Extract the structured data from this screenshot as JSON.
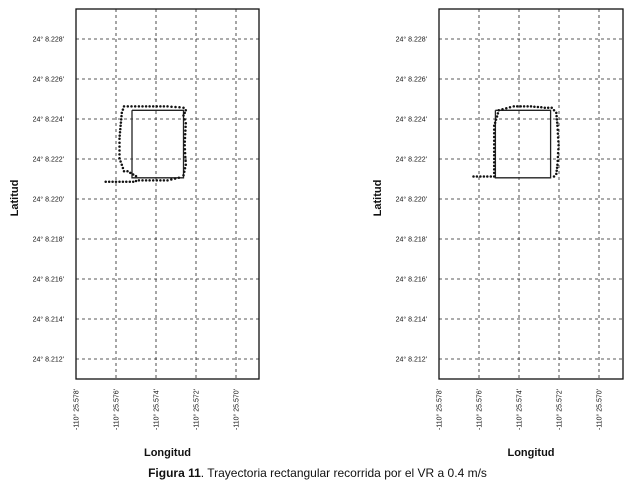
{
  "caption": {
    "label": "Figura 11",
    "text": ". Trayectoria rectangular recorrida por el VR a 0.4 m/s"
  },
  "chart_data": [
    {
      "type": "scatter",
      "xlabel": "Longitud",
      "ylabel": "Latitud",
      "x_ticks": [
        "-110° 25.578'",
        "-110° 25.576'",
        "-110° 25.574'",
        "-110° 25.572'",
        "-110° 25.570'"
      ],
      "y_ticks": [
        "24° 8.228'",
        "24° 8.226'",
        "24° 8.224'",
        "24° 8.222'",
        "24° 8.220'",
        "24° 8.218'",
        "24° 8.216'",
        "24° 8.214'",
        "24° 8.212'"
      ],
      "xlim": [
        -110.42631,
        -110.42615
      ],
      "ylim": [
        24.136865,
        24.13715
      ],
      "grid": true,
      "series": [
        {
          "style": "line",
          "x": [
            -110.426261,
            -110.426261,
            -110.426216,
            -110.426216,
            -110.426261
          ],
          "y": [
            24.137072,
            24.13702,
            24.13702,
            24.137072,
            24.137072
          ]
        },
        {
          "style": "dotted",
          "x": [
            -110.426284,
            -110.42626,
            -110.426255,
            -110.42623,
            -110.42622,
            -110.426216,
            -110.426214,
            -110.426215,
            -110.426214,
            -110.426216,
            -110.426214,
            -110.426216,
            -110.42623,
            -110.426255,
            -110.426268,
            -110.42627,
            -110.426271,
            -110.426272,
            -110.426272,
            -110.426268,
            -110.426265,
            -110.426255
          ],
          "y": [
            24.137017,
            24.137017,
            24.137018,
            24.137018,
            24.13702,
            24.137022,
            24.13703,
            24.137045,
            24.137062,
            24.137068,
            24.137072,
            24.137074,
            24.137075,
            24.137075,
            24.137075,
            24.13707,
            24.13706,
            24.13705,
            24.137035,
            24.137025,
            24.137025,
            24.13702
          ]
        }
      ]
    },
    {
      "type": "scatter",
      "xlabel": "Longitud",
      "ylabel": "Latitud",
      "x_ticks": [
        "-110° 25.578'",
        "-110° 25.576'",
        "-110° 25.574'",
        "-110° 25.572'",
        "-110° 25.570'"
      ],
      "y_ticks": [
        "24° 8.228'",
        "24° 8.226'",
        "24° 8.224'",
        "24° 8.222'",
        "24° 8.220'",
        "24° 8.218'",
        "24° 8.216'",
        "24° 8.214'",
        "24° 8.212'"
      ],
      "xlim": [
        -110.42631,
        -110.42615
      ],
      "ylim": [
        24.136865,
        24.13715
      ],
      "grid": true,
      "series": [
        {
          "style": "line",
          "x": [
            -110.426261,
            -110.426261,
            -110.426213,
            -110.426213,
            -110.426261
          ],
          "y": [
            24.137072,
            24.13702,
            24.13702,
            24.137072,
            24.137072
          ]
        },
        {
          "style": "dotted",
          "x": [
            -110.42628,
            -110.426262,
            -110.426262,
            -110.426262,
            -110.426258,
            -110.426245,
            -110.42623,
            -110.426218,
            -110.426212,
            -110.426208,
            -110.426207,
            -110.426206,
            -110.426207,
            -110.426208,
            -110.42621,
            -110.426213
          ],
          "y": [
            24.137021,
            24.137021,
            24.13704,
            24.13706,
            24.137072,
            24.137075,
            24.137075,
            24.137074,
            24.137074,
            24.13707,
            24.13706,
            24.137045,
            24.13703,
            24.137023,
            24.137021,
            24.13702
          ]
        }
      ]
    }
  ]
}
